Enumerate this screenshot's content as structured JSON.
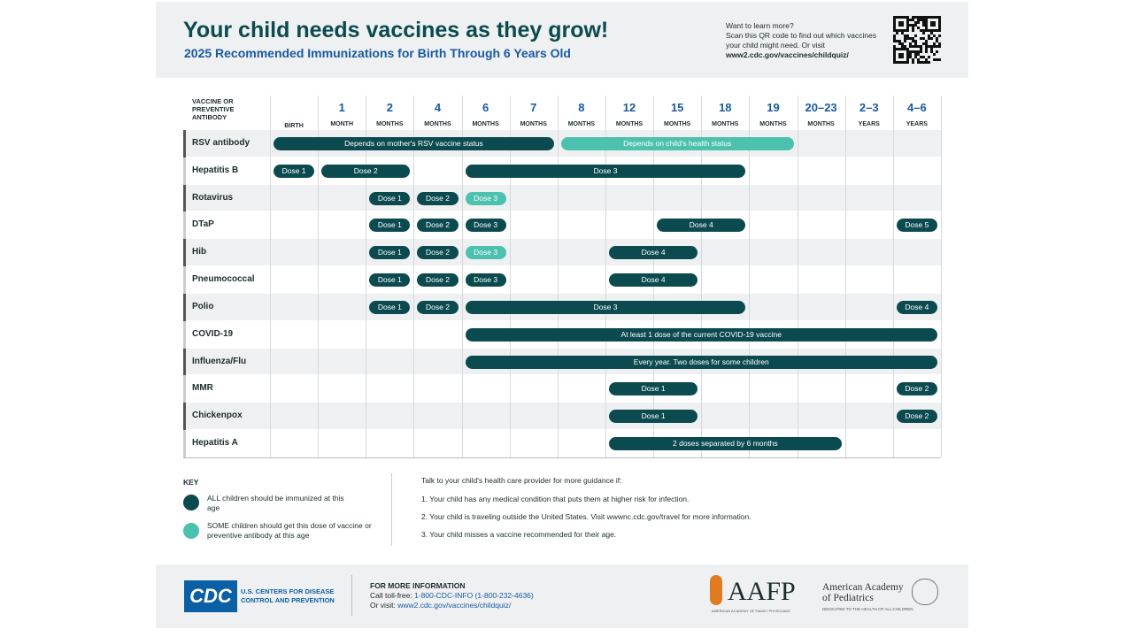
{
  "header": {
    "title": "Your child needs vaccines as they grow!",
    "subtitle": "2025 Recommended Immunizations for Birth Through 6 Years Old",
    "learn_more": "Want to learn more?",
    "learn_text": "Scan this QR code to find out which vaccines your child might need. Or visit",
    "learn_url": "www2.cdc.gov/vaccines/childquiz/"
  },
  "table": {
    "corner": "VACCINE OR PREVENTIVE ANTIBODY",
    "columns": [
      {
        "unit": "BIRTH"
      },
      {
        "number": "1",
        "unit": "MONTH"
      },
      {
        "number": "2",
        "unit": "MONTHS"
      },
      {
        "number": "4",
        "unit": "MONTHS"
      },
      {
        "number": "6",
        "unit": "MONTHS"
      },
      {
        "number": "7",
        "unit": "MONTHS"
      },
      {
        "number": "8",
        "unit": "MONTHS"
      },
      {
        "number": "12",
        "unit": "MONTHS"
      },
      {
        "number": "15",
        "unit": "MONTHS"
      },
      {
        "number": "18",
        "unit": "MONTHS"
      },
      {
        "number": "19",
        "unit": "MONTHS"
      },
      {
        "number": "20–23",
        "unit": "MONTHS"
      },
      {
        "number": "2–3",
        "unit": "YEARS"
      },
      {
        "number": "4–6",
        "unit": "YEARS"
      }
    ],
    "rows": [
      {
        "name": "RSV antibody",
        "bars": [
          {
            "label": "Depends on mother's RSV vaccine status",
            "span": [
              0,
              5
            ],
            "kind": "all"
          },
          {
            "label": "Depends on child's health status",
            "span": [
              6,
              10
            ],
            "kind": "some"
          }
        ]
      },
      {
        "name": "Hepatitis B",
        "bars": [
          {
            "label": "Dose 1",
            "span": [
              0,
              0
            ],
            "kind": "all"
          },
          {
            "label": "Dose 2",
            "span": [
              1,
              2
            ],
            "kind": "all"
          },
          {
            "label": "Dose 3",
            "span": [
              4,
              9
            ],
            "kind": "all"
          }
        ]
      },
      {
        "name": "Rotavirus",
        "bars": [
          {
            "label": "Dose 1",
            "span": [
              2,
              2
            ],
            "kind": "all"
          },
          {
            "label": "Dose 2",
            "span": [
              3,
              3
            ],
            "kind": "all"
          },
          {
            "label": "Dose 3",
            "span": [
              4,
              4
            ],
            "kind": "some"
          }
        ]
      },
      {
        "name": "DTaP",
        "bars": [
          {
            "label": "Dose 1",
            "span": [
              2,
              2
            ],
            "kind": "all"
          },
          {
            "label": "Dose 2",
            "span": [
              3,
              3
            ],
            "kind": "all"
          },
          {
            "label": "Dose 3",
            "span": [
              4,
              4
            ],
            "kind": "all"
          },
          {
            "label": "Dose 4",
            "span": [
              8,
              9
            ],
            "kind": "all"
          },
          {
            "label": "Dose 5",
            "span": [
              13,
              13
            ],
            "kind": "all"
          }
        ]
      },
      {
        "name": "Hib",
        "bars": [
          {
            "label": "Dose 1",
            "span": [
              2,
              2
            ],
            "kind": "all"
          },
          {
            "label": "Dose 2",
            "span": [
              3,
              3
            ],
            "kind": "all"
          },
          {
            "label": "Dose 3",
            "span": [
              4,
              4
            ],
            "kind": "some"
          },
          {
            "label": "Dose 4",
            "span": [
              7,
              8
            ],
            "kind": "all"
          }
        ]
      },
      {
        "name": "Pneumococcal",
        "bars": [
          {
            "label": "Dose 1",
            "span": [
              2,
              2
            ],
            "kind": "all"
          },
          {
            "label": "Dose 2",
            "span": [
              3,
              3
            ],
            "kind": "all"
          },
          {
            "label": "Dose 3",
            "span": [
              4,
              4
            ],
            "kind": "all"
          },
          {
            "label": "Dose 4",
            "span": [
              7,
              8
            ],
            "kind": "all"
          }
        ]
      },
      {
        "name": "Polio",
        "bars": [
          {
            "label": "Dose 1",
            "span": [
              2,
              2
            ],
            "kind": "all"
          },
          {
            "label": "Dose 2",
            "span": [
              3,
              3
            ],
            "kind": "all"
          },
          {
            "label": "Dose 3",
            "span": [
              4,
              9
            ],
            "kind": "all"
          },
          {
            "label": "Dose 4",
            "span": [
              13,
              13
            ],
            "kind": "all"
          }
        ]
      },
      {
        "name": "COVID-19",
        "bars": [
          {
            "label": "At least 1 dose of the current COVID-19 vaccine",
            "span": [
              4,
              13
            ],
            "kind": "all"
          }
        ]
      },
      {
        "name": "Influenza/Flu",
        "bars": [
          {
            "label": "Every year. Two doses for some children",
            "span": [
              4,
              13
            ],
            "kind": "all"
          }
        ]
      },
      {
        "name": "MMR",
        "bars": [
          {
            "label": "Dose 1",
            "span": [
              7,
              8
            ],
            "kind": "all"
          },
          {
            "label": "Dose 2",
            "span": [
              13,
              13
            ],
            "kind": "all"
          }
        ]
      },
      {
        "name": "Chickenpox",
        "bars": [
          {
            "label": "Dose 1",
            "span": [
              7,
              8
            ],
            "kind": "all"
          },
          {
            "label": "Dose 2",
            "span": [
              13,
              13
            ],
            "kind": "all"
          }
        ]
      },
      {
        "name": "Hepatitis A",
        "bars": [
          {
            "label": "2 doses separated by 6 months",
            "span": [
              7,
              11
            ],
            "kind": "all"
          }
        ]
      }
    ]
  },
  "key": {
    "title": "KEY",
    "all": "ALL children should be immunized at this age",
    "some": "SOME children should get this dose of vaccine or preventive antibody at this age",
    "colors": {
      "all": "#0b4a4f",
      "some": "#4cc1ad"
    }
  },
  "notes": {
    "intro": "Talk to your child's health care provider for more guidance if:",
    "items": [
      "1. Your child has any medical condition that puts them at higher risk for infection.",
      "2. Your child is traveling outside the United States. Visit wwwnc.cdc.gov/travel for more information.",
      "3. Your child misses a vaccine recommended for their age."
    ]
  },
  "footer": {
    "cdc": "CDC",
    "cdc_name": "U.S. CENTERS FOR DISEASE CONTROL AND PREVENTION",
    "info_title": "FOR MORE INFORMATION",
    "call": "Call toll-free:",
    "phone": "1-800-CDC-INFO (1-800-232-4636)",
    "visit": "Or visit:",
    "url": "www2.cdc.gov/vaccines/childquiz/",
    "aafp": "AAFP",
    "aafp_name": "AMERICAN ACADEMY OF FAMILY PHYSICIANS",
    "aap": "American Academy of Pediatrics",
    "aap_tag": "DEDICATED TO THE HEALTH OF ALL CHILDREN"
  }
}
